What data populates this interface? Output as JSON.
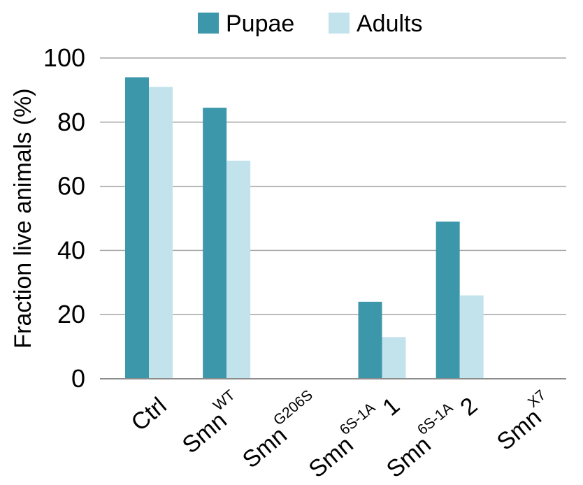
{
  "chart_data": {
    "type": "bar",
    "title": "",
    "xlabel": "",
    "ylabel": "Fraction live animals (%)",
    "ylim": [
      0,
      100
    ],
    "yticks": [
      0,
      20,
      40,
      60,
      80,
      100
    ],
    "grid": true,
    "legend_position": "top",
    "categories": [
      {
        "base": "Ctrl",
        "sup": "",
        "suffix": ""
      },
      {
        "base": "Smn",
        "sup": "WT",
        "suffix": ""
      },
      {
        "base": "Smn",
        "sup": "G206S",
        "suffix": ""
      },
      {
        "base": "Smn",
        "sup": "6S-1A",
        "suffix": " 1"
      },
      {
        "base": "Smn",
        "sup": "6S-1A",
        "suffix": " 2"
      },
      {
        "base": "Smn",
        "sup": "X7",
        "suffix": ""
      }
    ],
    "series": [
      {
        "name": "Pupae",
        "color": "#3c97ab",
        "values": [
          94,
          84.5,
          0,
          24,
          49,
          0
        ]
      },
      {
        "name": "Adults",
        "color": "#c2e3ec",
        "values": [
          91,
          68,
          0,
          13,
          26,
          0
        ]
      }
    ]
  }
}
